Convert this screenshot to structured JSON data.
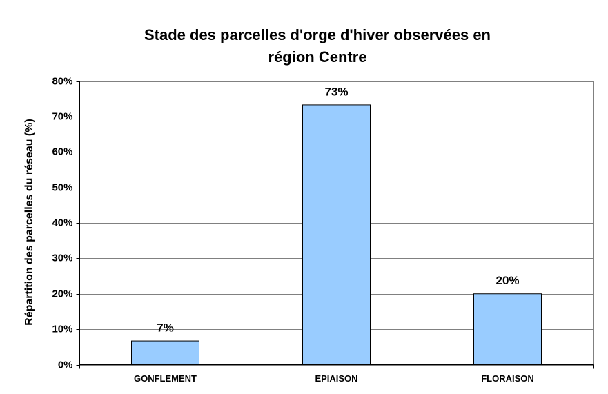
{
  "chart_data": {
    "type": "bar",
    "title": [
      "Stade des parcelles d'orge d'hiver observées en",
      "région Centre"
    ],
    "y_label": "Répartition des parcelles du réseau (%)",
    "categories": [
      "GONFLEMENT",
      "EPIAISON",
      "FLORAISON"
    ],
    "values": [
      6.7,
      73.3,
      20
    ],
    "value_labels": [
      "7%",
      "73%",
      "20%"
    ],
    "color": "#99ccff",
    "ylim": [
      0,
      80
    ],
    "yticks": [
      {
        "value": 0,
        "label": "0%"
      },
      {
        "value": 10,
        "label": "10%"
      },
      {
        "value": 20,
        "label": "20%"
      },
      {
        "value": 30,
        "label": "30%"
      },
      {
        "value": 40,
        "label": "40%"
      },
      {
        "value": 50,
        "label": "50%"
      },
      {
        "value": 60,
        "label": "60%"
      },
      {
        "value": 70,
        "label": "70%"
      },
      {
        "value": 80,
        "label": "80%"
      }
    ],
    "grid": true
  }
}
